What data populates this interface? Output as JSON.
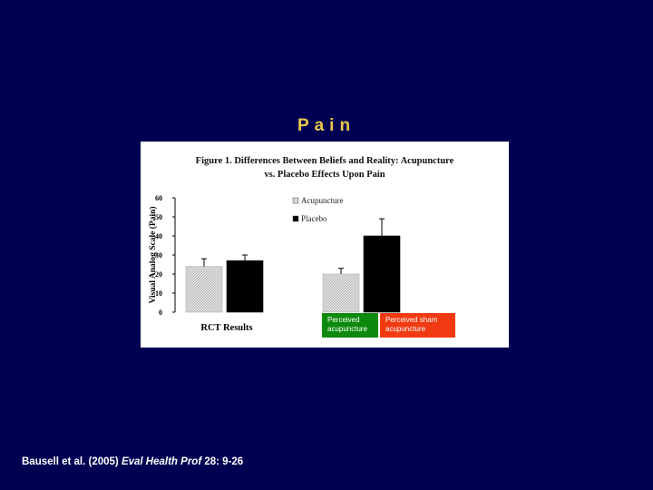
{
  "slide": {
    "title": "Pain",
    "citation": {
      "authors": "Bausell et al. (2005)",
      "journal": "Eval Health Prof",
      "volume_pages": "28: 9-26"
    }
  },
  "figure": {
    "title_line1": "Figure 1.  Differences Between Beliefs and Reality: Acupuncture",
    "title_line2": "vs. Placebo Effects Upon Pain",
    "badges": {
      "left": "Perceived acupuncture",
      "right": "Perceived sham acupuncture"
    }
  },
  "colors": {
    "background": "#000052",
    "title": "#e8c84a",
    "acupuncture": "#d0d0d0",
    "placebo": "#000000",
    "badge_green": "#0d8a0d",
    "badge_red": "#f23a12"
  },
  "chart_data": {
    "type": "bar",
    "title": "Figure 1.  Differences Between Beliefs and Reality: Acupuncture vs. Placebo Effects Upon Pain",
    "ylabel": "Visual Analog Scale (Pain)",
    "xlabel": "",
    "ylim": [
      0,
      60
    ],
    "yticks": [
      0,
      10,
      20,
      30,
      40,
      50,
      60
    ],
    "grid": false,
    "legend": "top-center",
    "categories": [
      "RCT Results",
      ""
    ],
    "series": [
      {
        "name": "Acupuncture",
        "values": [
          24,
          20
        ],
        "errors": [
          4,
          3
        ]
      },
      {
        "name": "Placebo",
        "values": [
          27,
          40
        ],
        "errors": [
          3,
          9
        ]
      }
    ]
  }
}
